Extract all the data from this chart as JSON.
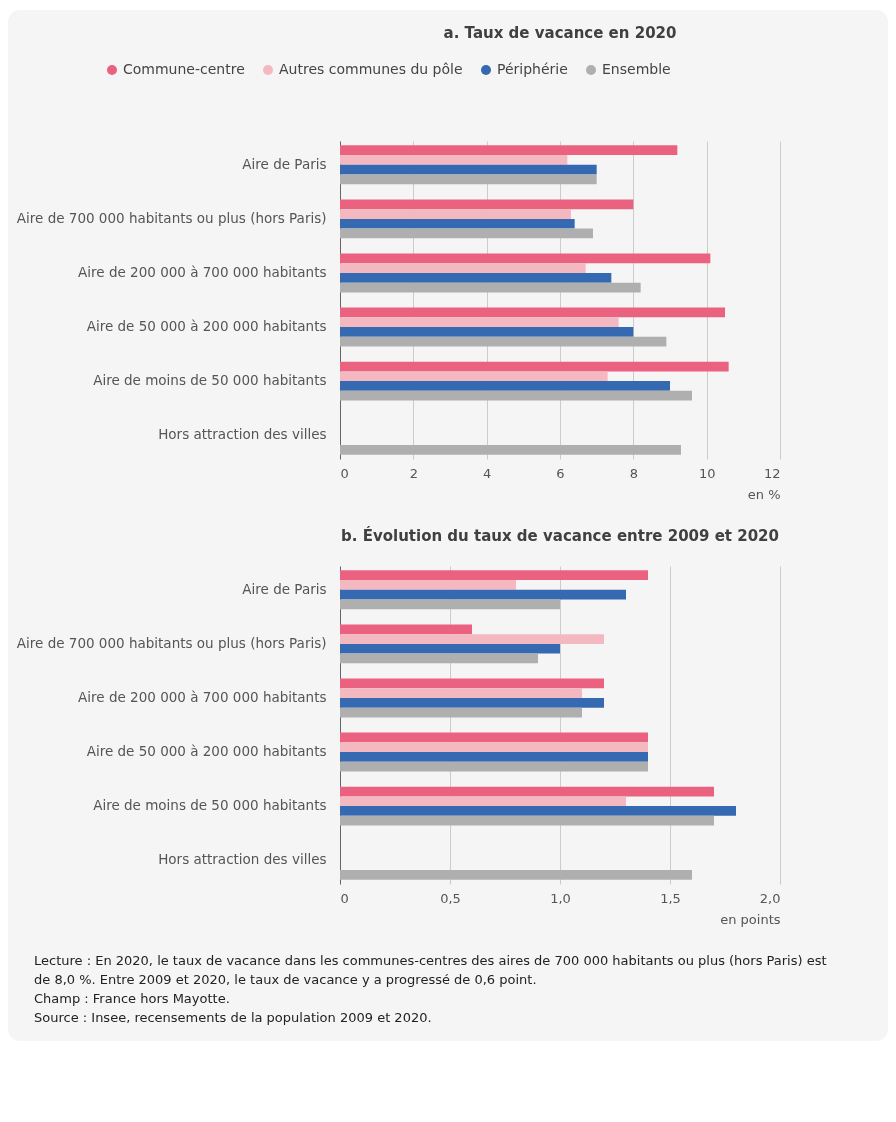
{
  "chart_data": [
    {
      "type": "bar",
      "orientation": "horizontal",
      "title": "a. Taux de vacance en 2020",
      "xlabel": "en %",
      "legend": "top",
      "grid": "x",
      "categories": [
        "Aire de Paris",
        "Aire de 700 000 habitants ou plus (hors Paris)",
        "Aire de 200 000 à 700 000 habitants",
        "Aire de 50 000 à 200 000 habitants",
        "Aire de moins de 50 000 habitants",
        "Hors attraction des villes"
      ],
      "xlim": [
        0,
        12
      ],
      "xticks": [
        0,
        2,
        4,
        6,
        8,
        10,
        12
      ],
      "series": [
        {
          "name": "Commune-centre",
          "color": "#eb6180",
          "values": [
            9.2,
            8.0,
            10.1,
            10.5,
            10.6,
            null
          ]
        },
        {
          "name": "Autres communes du pôle",
          "color": "#f4b8c1",
          "values": [
            6.2,
            6.3,
            6.7,
            7.6,
            7.3,
            null
          ]
        },
        {
          "name": "Périphérie",
          "color": "#3569b1",
          "values": [
            7.0,
            6.4,
            7.4,
            8.0,
            9.0,
            null
          ]
        },
        {
          "name": "Ensemble",
          "color": "#b0afb0",
          "values": [
            7.0,
            6.9,
            8.2,
            8.9,
            9.6,
            9.3
          ]
        }
      ]
    },
    {
      "type": "bar",
      "orientation": "horizontal",
      "title": "b. Évolution du taux de vacance entre 2009 et 2020",
      "xlabel": "en points",
      "grid": "x",
      "categories": [
        "Aire de Paris",
        "Aire de 700 000 habitants ou plus (hors Paris)",
        "Aire de 200 000 à 700 000 habitants",
        "Aire de 50 000 à 200 000 habitants",
        "Aire de moins de 50 000 habitants",
        "Hors attraction des villes"
      ],
      "xlim": [
        0,
        2
      ],
      "xticks": [
        0,
        {
          "value": 0.5,
          "label": "0,5"
        },
        {
          "value": 1,
          "label": "1,0"
        },
        {
          "value": 1.5,
          "label": "1,5"
        },
        {
          "value": 2,
          "label": "2,0"
        }
      ],
      "series": [
        {
          "color": "#eb6180",
          "values": [
            1.4,
            0.6,
            1.2,
            1.4,
            1.7,
            null
          ]
        },
        {
          "color": "#f4b8c1",
          "values": [
            0.8,
            1.2,
            1.1,
            1.4,
            1.3,
            null
          ]
        },
        {
          "color": "#3569b1",
          "values": [
            1.3,
            1.0,
            1.2,
            1.4,
            1.8,
            null
          ]
        },
        {
          "color": "#b0afb0",
          "values": [
            1.0,
            0.9,
            1.1,
            1.4,
            1.7,
            1.6
          ]
        }
      ],
      "annotations": [
        "Lecture : En 2020, le taux de vacance dans les communes-centres des aires de 700 000 habitants ou plus (hors Paris) est de 8,0 %. Entre 2009 et 2020, le taux de vacance y a progressé de 0,6 point.",
        "Champ : France hors Mayotte.",
        "Source : Insee, recensements de la population 2009 et 2020."
      ]
    }
  ]
}
